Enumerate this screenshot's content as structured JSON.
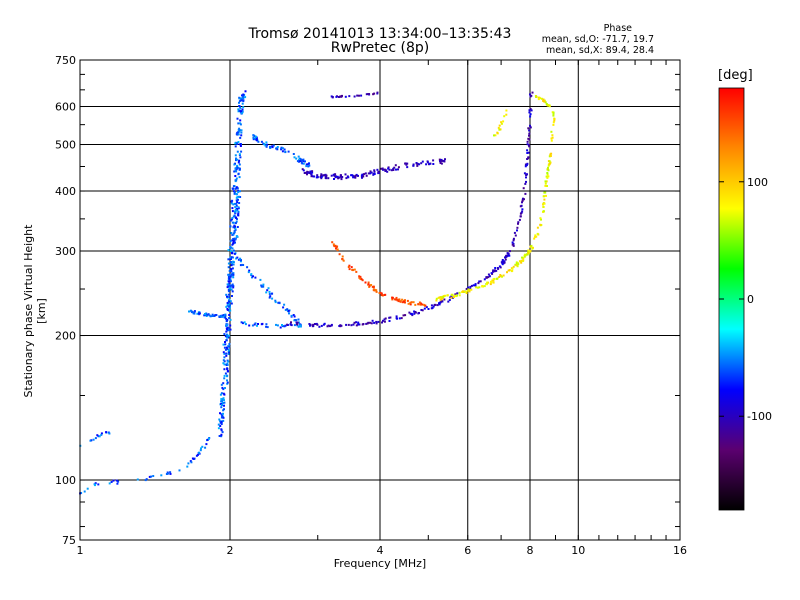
{
  "chart_data": {
    "type": "scatter",
    "title": "Tromsø 20141013 13:34:00–13:35:43",
    "subtitle": "RwPretec (8p)",
    "phase_stats": {
      "title": "Phase",
      "line_o": "mean, sd,O:  -71.7, 19.7",
      "line_x": "mean, sd,X:  89.4, 28.4"
    },
    "xlabel": "Frequency [MHz]",
    "ylabel": "Stationary phase Virtual Height [km]",
    "x_scale": "log",
    "y_scale": "log",
    "xlim": [
      1,
      16
    ],
    "ylim": [
      75,
      750
    ],
    "x_ticks": [
      1,
      2,
      4,
      6,
      8,
      10,
      16
    ],
    "x_tick_labels": [
      "1",
      "2",
      "4",
      "6",
      "8",
      "10",
      "16"
    ],
    "y_ticks": [
      75,
      100,
      200,
      300,
      400,
      500,
      600,
      750
    ],
    "y_tick_labels": [
      "75",
      "100",
      "200",
      "300",
      "400",
      "500",
      "600",
      "750"
    ],
    "grid": true,
    "colorbar": {
      "label": "[deg]",
      "range": [
        -180,
        180
      ],
      "ticks": [
        100,
        0,
        -100
      ],
      "tick_labels": [
        "100",
        "0",
        "-100"
      ],
      "colors": [
        "#000000",
        "#5b0070",
        "#0000ff",
        "#00ffff",
        "#00ff00",
        "#ffff00",
        "#ff8800",
        "#ff0000"
      ]
    },
    "series": [
      {
        "color_phase": -60,
        "traces": [
          {
            "f": [
              1.95,
              1.97,
              2.0,
              2.02,
              2.04,
              2.06,
              2.08,
              2.1,
              2.12
            ],
            "h": [
              150,
              200,
              250,
              300,
              360,
              420,
              500,
              580,
              640
            ],
            "spread": 0.05,
            "n": 260
          },
          {
            "f": [
              1.9,
              1.93,
              1.96,
              1.98,
              2.0,
              2.02,
              2.05,
              2.08
            ],
            "h": [
              120,
              140,
              170,
              200,
              240,
              280,
              330,
              400
            ],
            "spread": 0.04,
            "n": 160
          },
          {
            "f": [
              1.3,
              1.45,
              1.6,
              1.75,
              1.85,
              1.95
            ],
            "h": [
              100,
              102,
              105,
              115,
              125,
              135
            ],
            "spread": 0.02,
            "n": 40
          },
          {
            "f": [
              1.65,
              1.75,
              1.85,
              1.95
            ],
            "h": [
              225,
              222,
              220,
              220
            ],
            "spread": 0.015,
            "n": 40
          },
          {
            "f": [
              2.0,
              2.2,
              2.4,
              2.6,
              2.8
            ],
            "h": [
              300,
              270,
              245,
              225,
              212
            ],
            "spread": 0.03,
            "n": 60
          },
          {
            "f": [
              2.1,
              2.3,
              2.5,
              2.8
            ],
            "h": [
              212,
              210,
              209,
              210
            ],
            "spread": 0.02,
            "n": 30
          },
          {
            "f": [
              2.2,
              2.35,
              2.5,
              2.7,
              2.9
            ],
            "h": [
              520,
              500,
              490,
              470,
              450
            ],
            "spread": 0.03,
            "n": 70
          },
          {
            "f": [
              1.0,
              1.04,
              1.08,
              1.12,
              1.16
            ],
            "h": [
              118,
              120,
              123,
              125,
              126
            ],
            "spread": 0.015,
            "n": 14
          },
          {
            "f": [
              1.0,
              1.05,
              1.1,
              1.2
            ],
            "h": [
              93,
              97,
              99,
              99
            ],
            "spread": 0.02,
            "n": 14
          }
        ]
      },
      {
        "color_phase": -100,
        "traces": [
          {
            "f": [
              2.8,
              3.0,
              3.3,
              3.6,
              4.0,
              4.4,
              5.0,
              5.5
            ],
            "h": [
              440,
              430,
              428,
              430,
              440,
              450,
              458,
              462
            ],
            "spread": 0.03,
            "n": 150
          },
          {
            "f": [
              2.6,
              3.0,
              3.5,
              4.0,
              4.5,
              5.0,
              5.5,
              6.0,
              6.5,
              7.0,
              7.3,
              7.6,
              7.8,
              7.95,
              8.05
            ],
            "h": [
              212,
              210,
              211,
              214,
              220,
              228,
              238,
              250,
              262,
              280,
              300,
              340,
              400,
              500,
              640
            ],
            "spread": 0.02,
            "n": 230
          },
          {
            "f": [
              3.2,
              3.4,
              3.6,
              3.8,
              4.0
            ],
            "h": [
              628,
              630,
              632,
              636,
              640
            ],
            "spread": 0.01,
            "n": 25
          }
        ]
      },
      {
        "color_phase": 150,
        "traces": [
          {
            "f": [
              3.2,
              3.4,
              3.7,
              4.0,
              4.3,
              4.6,
              5.0
            ],
            "h": [
              315,
              285,
              260,
              245,
              238,
              234,
              232
            ],
            "spread": 0.02,
            "n": 90
          }
        ]
      },
      {
        "color_phase": 80,
        "traces": [
          {
            "f": [
              5.2,
              5.6,
              6.0,
              6.5,
              7.0,
              7.5,
              8.0,
              8.4,
              8.6,
              8.8,
              8.95
            ],
            "h": [
              238,
              242,
              248,
              255,
              265,
              280,
              300,
              340,
              400,
              480,
              600
            ],
            "spread": 0.02,
            "n": 180
          },
          {
            "f": [
              8.2,
              8.5,
              8.8,
              9.0
            ],
            "h": [
              630,
              620,
              600,
              560
            ],
            "spread": 0.015,
            "n": 25
          },
          {
            "f": [
              6.8,
              7.0,
              7.2
            ],
            "h": [
              520,
              550,
              590
            ],
            "spread": 0.02,
            "n": 15
          }
        ]
      }
    ]
  }
}
